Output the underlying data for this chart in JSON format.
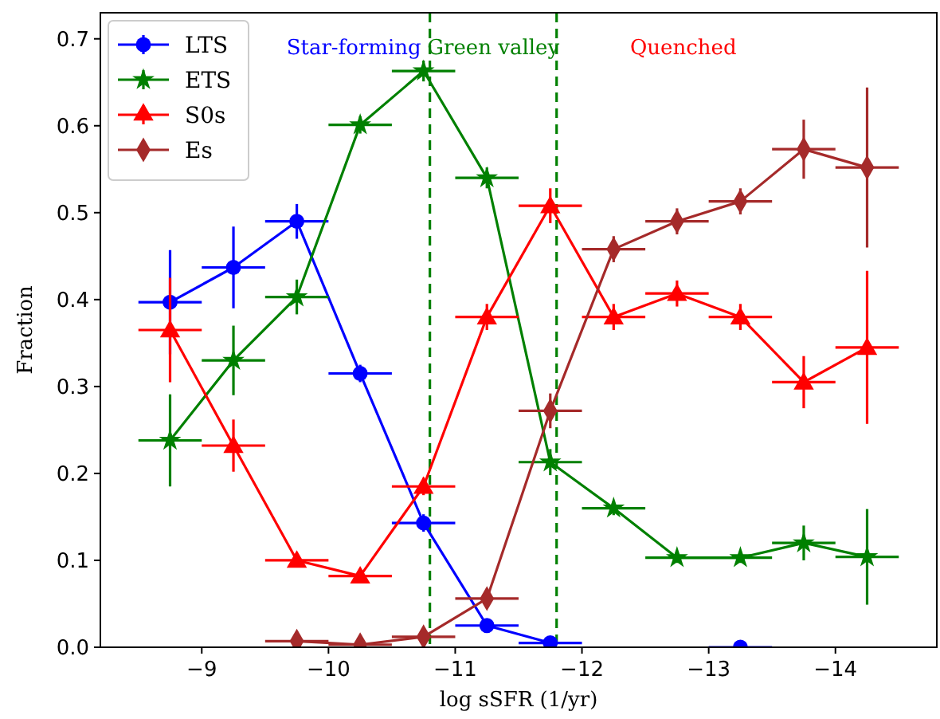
{
  "chart_data": {
    "type": "line",
    "xlabel": "log  sSFR (1/yr)",
    "ylabel": "Fraction",
    "x": [
      -8.75,
      -9.25,
      -9.75,
      -10.25,
      -10.75,
      -11.25,
      -11.75,
      -12.25,
      -12.75,
      -13.25,
      -13.75,
      -14.25
    ],
    "xlim": [
      -8.2,
      -14.8
    ],
    "xticks": [
      -9,
      -10,
      -11,
      -12,
      -13,
      -14
    ],
    "ylim": [
      0,
      0.73
    ],
    "yticks": [
      {
        "value": 0,
        "label": "0.0"
      },
      {
        "value": 0.1,
        "label": "0.1"
      },
      {
        "value": 0.2,
        "label": "0.2"
      },
      {
        "value": 0.3,
        "label": "0.3"
      },
      {
        "value": 0.4,
        "label": "0.4"
      },
      {
        "value": 0.5,
        "label": "0.5"
      },
      {
        "value": 0.6,
        "label": "0.6"
      },
      {
        "value": 0.7,
        "label": "0.7"
      }
    ],
    "legend": "top left",
    "grid": false,
    "series": [
      {
        "name": "LTS",
        "color": "#0000ff",
        "marker": "circle",
        "values": [
          0.397,
          0.437,
          0.49,
          0.315,
          0.143,
          0.025,
          0.005,
          null,
          null,
          0,
          null,
          null
        ],
        "errors": [
          0.06,
          0.047,
          0.02,
          0.01,
          0.01,
          0.005,
          0.004,
          null,
          null,
          0,
          null,
          null
        ],
        "xerrors": [
          0.25,
          0.25,
          0.25,
          0.25,
          0.25,
          0.25,
          0.25,
          null,
          null,
          0.25,
          null,
          null
        ]
      },
      {
        "name": "ETS",
        "color": "#008000",
        "marker": "star",
        "values": [
          0.238,
          0.33,
          0.403,
          0.601,
          0.663,
          0.54,
          0.213,
          0.16,
          0.103,
          0.103,
          0.12,
          0.104
        ],
        "errors": [
          0.053,
          0.04,
          0.02,
          0.01,
          0.012,
          0.012,
          0.015,
          0.008,
          0.006,
          0.006,
          0.02,
          0.055
        ],
        "xerrors": [
          0.25,
          0.25,
          0.25,
          0.25,
          0.25,
          0.25,
          0.25,
          0.25,
          0.25,
          0.25,
          0.25,
          0.25
        ]
      },
      {
        "name": "S0s",
        "color": "#ff0000",
        "marker": "triangle",
        "values": [
          0.365,
          0.232,
          0.1,
          0.082,
          0.185,
          0.38,
          0.508,
          0.38,
          0.407,
          0.38,
          0.305,
          0.345
        ],
        "errors": [
          0.06,
          0.03,
          0.008,
          0.006,
          0.01,
          0.015,
          0.02,
          0.015,
          0.015,
          0.015,
          0.03,
          0.088
        ],
        "xerrors": [
          0.25,
          0.25,
          0.25,
          0.25,
          0.25,
          0.25,
          0.25,
          0.25,
          0.25,
          0.25,
          0.25,
          0.25
        ]
      },
      {
        "name": "Es",
        "color": "#a52a2a",
        "marker": "diamond",
        "values": [
          null,
          null,
          0.007,
          0.003,
          0.012,
          0.056,
          0.272,
          0.458,
          0.49,
          0.513,
          0.573,
          0.552
        ],
        "errors": [
          null,
          null,
          0.003,
          0.002,
          0.004,
          0.008,
          0.02,
          0.015,
          0.015,
          0.015,
          0.034,
          0.092
        ],
        "xerrors": [
          null,
          null,
          0.25,
          0.25,
          0.25,
          0.25,
          0.25,
          0.25,
          0.25,
          0.25,
          0.25,
          0.25
        ]
      }
    ],
    "ref_lines": [
      {
        "axis": "x",
        "value": -10.8,
        "color": "#008000",
        "line_style": "dashed"
      },
      {
        "axis": "x",
        "value": -11.8,
        "color": "#008000",
        "line_style": "dashed"
      }
    ],
    "annotations": [
      "Star-forming",
      "Green valley",
      "Quenched"
    ]
  }
}
